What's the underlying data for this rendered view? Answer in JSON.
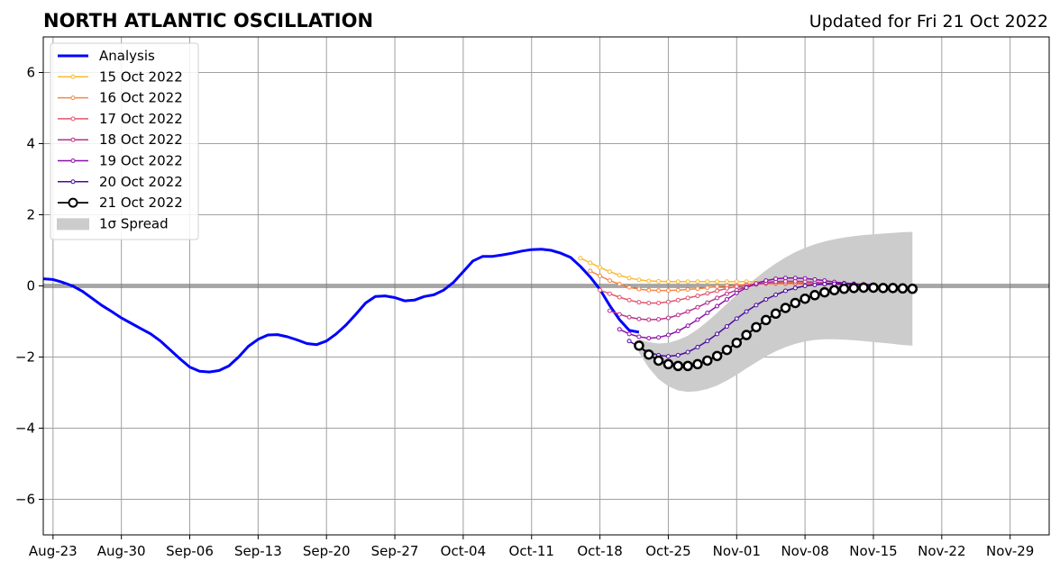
{
  "chart_data": {
    "type": "line",
    "title": "NORTH ATLANTIC OSCILLATION",
    "subtitle": "Updated for Fri 21 Oct 2022",
    "xlabel": "",
    "ylabel": "",
    "x_range": [
      "2022-08-22",
      "2022-12-03"
    ],
    "ylim": [
      -7,
      7
    ],
    "y_ticks": [
      -6,
      -4,
      -2,
      0,
      2,
      4,
      6
    ],
    "y_tick_labels": [
      "−6",
      "−4",
      "−2",
      "0",
      "2",
      "4",
      "6"
    ],
    "x_ticks": [
      {
        "date": "2022-08-23",
        "label": "Aug-23"
      },
      {
        "date": "2022-08-30",
        "label": "Aug-30"
      },
      {
        "date": "2022-09-06",
        "label": "Sep-06"
      },
      {
        "date": "2022-09-13",
        "label": "Sep-13"
      },
      {
        "date": "2022-09-20",
        "label": "Sep-20"
      },
      {
        "date": "2022-09-27",
        "label": "Sep-27"
      },
      {
        "date": "2022-10-04",
        "label": "Oct-04"
      },
      {
        "date": "2022-10-11",
        "label": "Oct-11"
      },
      {
        "date": "2022-10-18",
        "label": "Oct-18"
      },
      {
        "date": "2022-10-25",
        "label": "Oct-25"
      },
      {
        "date": "2022-11-01",
        "label": "Nov-01"
      },
      {
        "date": "2022-11-08",
        "label": "Nov-08"
      },
      {
        "date": "2022-11-15",
        "label": "Nov-15"
      },
      {
        "date": "2022-11-22",
        "label": "Nov-22"
      },
      {
        "date": "2022-11-29",
        "label": "Nov-29"
      }
    ],
    "grid": true,
    "legend_position": "top-left",
    "series": [
      {
        "name": "Analysis",
        "color": "#0000ff",
        "kind": "analysis",
        "start": "2022-08-22",
        "values": [
          0.2,
          0.18,
          0.1,
          0.0,
          -0.15,
          -0.35,
          -0.55,
          -0.72,
          -0.9,
          -1.05,
          -1.2,
          -1.35,
          -1.55,
          -1.8,
          -2.05,
          -2.28,
          -2.4,
          -2.42,
          -2.38,
          -2.25,
          -2.0,
          -1.7,
          -1.5,
          -1.38,
          -1.37,
          -1.43,
          -1.52,
          -1.62,
          -1.65,
          -1.55,
          -1.35,
          -1.1,
          -0.8,
          -0.48,
          -0.3,
          -0.28,
          -0.33,
          -0.42,
          -0.4,
          -0.3,
          -0.25,
          -0.12,
          0.1,
          0.4,
          0.7,
          0.83,
          0.83,
          0.87,
          0.92,
          0.98,
          1.02,
          1.03,
          1.0,
          0.92,
          0.8,
          0.55,
          0.25,
          -0.1,
          -0.55,
          -0.95,
          -1.25,
          -1.3
        ]
      },
      {
        "name": "15 Oct 2022",
        "color": "#fcb92d",
        "kind": "forecast",
        "start": "2022-10-16",
        "values": [
          0.78,
          0.65,
          0.52,
          0.4,
          0.3,
          0.22,
          0.17,
          0.14,
          0.13,
          0.12,
          0.12,
          0.12,
          0.12,
          0.12,
          0.12,
          0.12,
          0.12,
          0.12,
          0.12,
          0.12,
          0.11,
          0.1,
          0.09,
          0.08,
          0.07,
          0.06,
          0.05,
          0.05,
          0.05,
          0.05
        ]
      },
      {
        "name": "16 Oct 2022",
        "color": "#f48846",
        "kind": "forecast",
        "start": "2022-10-17",
        "values": [
          0.42,
          0.28,
          0.15,
          0.05,
          -0.04,
          -0.09,
          -0.12,
          -0.13,
          -0.13,
          -0.12,
          -0.1,
          -0.08,
          -0.05,
          -0.02,
          0.0,
          0.02,
          0.04,
          0.05,
          0.06,
          0.06,
          0.06,
          0.06,
          0.05,
          0.05,
          0.04,
          0.04,
          0.04,
          0.03,
          0.03
        ]
      },
      {
        "name": "17 Oct 2022",
        "color": "#e0556f",
        "kind": "forecast",
        "start": "2022-10-18",
        "values": [
          -0.12,
          -0.22,
          -0.32,
          -0.4,
          -0.46,
          -0.48,
          -0.48,
          -0.45,
          -0.4,
          -0.34,
          -0.28,
          -0.21,
          -0.14,
          -0.07,
          -0.02,
          0.02,
          0.05,
          0.07,
          0.08,
          0.08,
          0.08,
          0.07,
          0.06,
          0.05,
          0.04,
          0.04,
          0.03,
          0.03,
          0.03
        ]
      },
      {
        "name": "18 Oct 2022",
        "color": "#b83289",
        "kind": "forecast",
        "start": "2022-10-19",
        "values": [
          -0.7,
          -0.8,
          -0.88,
          -0.93,
          -0.95,
          -0.94,
          -0.9,
          -0.82,
          -0.72,
          -0.6,
          -0.47,
          -0.34,
          -0.22,
          -0.12,
          -0.03,
          0.04,
          0.09,
          0.12,
          0.13,
          0.13,
          0.12,
          0.1,
          0.08,
          0.06,
          0.05,
          0.04,
          0.03,
          0.03
        ]
      },
      {
        "name": "19 Oct 2022",
        "color": "#8c0fa8",
        "kind": "forecast",
        "start": "2022-10-20",
        "values": [
          -1.22,
          -1.35,
          -1.43,
          -1.47,
          -1.45,
          -1.38,
          -1.27,
          -1.12,
          -0.95,
          -0.76,
          -0.57,
          -0.38,
          -0.2,
          -0.05,
          0.07,
          0.15,
          0.2,
          0.22,
          0.22,
          0.21,
          0.18,
          0.15,
          0.11,
          0.08,
          0.06,
          0.04,
          0.03
        ]
      },
      {
        "name": "20 Oct 2022",
        "color": "#4b0aa0",
        "kind": "forecast",
        "start": "2022-10-21",
        "values": [
          -1.55,
          -1.72,
          -1.86,
          -1.95,
          -1.98,
          -1.95,
          -1.86,
          -1.72,
          -1.55,
          -1.35,
          -1.14,
          -0.92,
          -0.72,
          -0.54,
          -0.38,
          -0.25,
          -0.14,
          -0.06,
          0.0,
          0.03,
          0.05,
          0.06,
          0.06,
          0.05,
          0.04,
          0.03
        ]
      },
      {
        "name": "21 Oct 2022",
        "color": "#000000",
        "kind": "current",
        "start": "2022-10-22",
        "values": [
          -1.68,
          -1.93,
          -2.1,
          -2.2,
          -2.25,
          -2.25,
          -2.2,
          -2.1,
          -1.97,
          -1.8,
          -1.6,
          -1.38,
          -1.16,
          -0.96,
          -0.78,
          -0.62,
          -0.48,
          -0.36,
          -0.26,
          -0.18,
          -0.12,
          -0.08,
          -0.06,
          -0.05,
          -0.05,
          -0.06,
          -0.06,
          -0.07,
          -0.08
        ]
      }
    ],
    "spread": {
      "name": "1σ Spread",
      "symbol": "σ",
      "color": "#cccccc",
      "start": "2022-10-22",
      "upper": [
        -1.5,
        -1.58,
        -1.62,
        -1.6,
        -1.52,
        -1.4,
        -1.22,
        -1.0,
        -0.76,
        -0.5,
        -0.25,
        0.0,
        0.22,
        0.44,
        0.63,
        0.8,
        0.95,
        1.07,
        1.17,
        1.25,
        1.31,
        1.36,
        1.4,
        1.43,
        1.45,
        1.47,
        1.49,
        1.51,
        1.52
      ],
      "lower": [
        -1.88,
        -2.3,
        -2.62,
        -2.82,
        -2.94,
        -2.98,
        -2.96,
        -2.9,
        -2.8,
        -2.66,
        -2.5,
        -2.32,
        -2.15,
        -1.98,
        -1.84,
        -1.72,
        -1.63,
        -1.56,
        -1.52,
        -1.5,
        -1.5,
        -1.51,
        -1.53,
        -1.55,
        -1.58,
        -1.6,
        -1.63,
        -1.66,
        -1.68
      ]
    }
  }
}
